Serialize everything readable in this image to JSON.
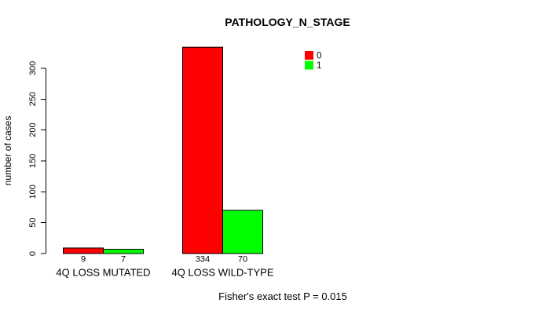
{
  "chart_data": {
    "type": "bar",
    "title": "PATHOLOGY_N_STAGE",
    "ylabel": "number of cases",
    "xlabel": "",
    "categories": [
      "4Q LOSS MUTATED",
      "4Q LOSS WILD-TYPE"
    ],
    "series": [
      {
        "name": "0",
        "color": "#ff0000",
        "values": [
          9,
          334
        ]
      },
      {
        "name": "1",
        "color": "#00ff00",
        "values": [
          7,
          70
        ]
      }
    ],
    "bar_value_labels": [
      [
        "9",
        "7"
      ],
      [
        "334",
        "70"
      ]
    ],
    "yticks": [
      0,
      50,
      100,
      150,
      200,
      250,
      300
    ],
    "ylim": [
      0,
      340
    ],
    "grid": false,
    "legend": {
      "position": "top-right",
      "entries": [
        {
          "label": "0",
          "color": "#ff0000"
        },
        {
          "label": "1",
          "color": "#00ff00"
        }
      ]
    },
    "annotation": "Fisher's exact test P = 0.015",
    "bar_border_color": "#000000",
    "background": "#ffffff",
    "text_color": "#000000"
  }
}
